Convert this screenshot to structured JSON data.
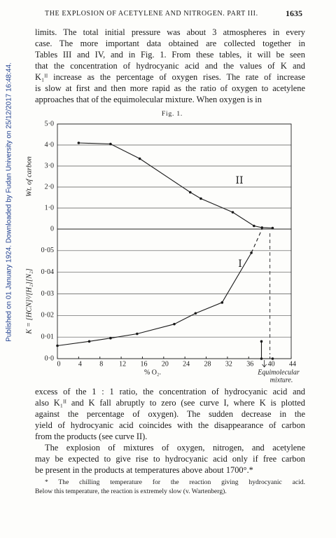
{
  "header": {
    "running_title": "THE EXPLOSION OF ACETYLENE AND NITROGEN.   PART III.",
    "page_number": "1635"
  },
  "side_note": "Published on 01 January 1924. Downloaded by Fudan University on 25/12/2017 16:48:44.",
  "paragraphs": [
    {
      "lines": [
        "limits.  The total initial pressure was about 3 atmospheres in every",
        "case.  The more important data obtained are collected together in",
        "Tables III and IV, and in Fig. 1.  From these tables, it will be seen",
        "that the concentration of hydrocyanic acid and the values of K and",
        "K₁ᴵᴵ increase as the percentage of oxygen rises.  The rate of increase",
        "is slow at first and then more rapid as the ratio of oxygen to acetylene",
        "approaches that of the equimolecular mixture.  When oxygen is in"
      ]
    },
    {
      "lines": [
        "excess of the 1 : 1 ratio, the concentration of hydrocyanic acid and",
        "also K₁ᴵᴵ and K fall abruptly to zero (see curve I, where K is plotted",
        "against the percentage of oxygen).  The sudden decrease in the",
        "yield of hydrocyanic acid coincides with the disappearance of carbon",
        "from the products (see curve II)."
      ]
    },
    {
      "lines": [
        "The explosion of mixtures of oxygen, nitrogen, and acetylene",
        "may be expected to give rise to hydrocyanic acid only if free carbon",
        "be present in the products at temperatures above about 1700°.*"
      ]
    }
  ],
  "footnote": {
    "lines": [
      "* The chilling temperature for the reaction giving hydrocyanic acid.",
      "Below this temperature, the reaction is extremely slow (v. Wartenberg)."
    ]
  },
  "figure_label": "Fig. 1.",
  "chart_data": [
    {
      "type": "line",
      "ylabel": "Wt. of carbon",
      "xlim": [
        0,
        44
      ],
      "ylim": [
        0,
        5
      ],
      "yticks": [
        0,
        {
          "value": 1,
          "label": "1·0"
        },
        {
          "value": 2,
          "label": "2·0"
        },
        {
          "value": 3,
          "label": "3·0"
        },
        {
          "value": 4,
          "label": "4·0"
        },
        {
          "value": 5,
          "label": "5·0"
        }
      ],
      "grid": true,
      "series": [
        {
          "name": "II",
          "color": "#1a1a1a",
          "markers": true,
          "x": [
            4,
            10,
            15.5,
            25,
            27,
            33,
            37,
            38.5,
            40.5
          ],
          "values": [
            4.1,
            4.05,
            3.35,
            1.75,
            1.45,
            0.8,
            0.15,
            0.07,
            0.05
          ]
        }
      ]
    },
    {
      "type": "line",
      "ylabel": "K = [HCN]²/[H₂][N₂]",
      "xlabel": "% O₂.",
      "annotation": [
        "Equimolecular",
        "mixture."
      ],
      "xlim": [
        0,
        44
      ],
      "xticks": [
        0,
        4,
        8,
        12,
        16,
        20,
        24,
        28,
        32,
        36,
        40,
        44
      ],
      "ylim": [
        0,
        0.06
      ],
      "yticks": [
        {
          "value": 0,
          "label": "0·0"
        },
        {
          "value": 0.01,
          "label": "0·01"
        },
        {
          "value": 0.02,
          "label": "0·02"
        },
        {
          "value": 0.03,
          "label": "0·03"
        },
        {
          "value": 0.04,
          "label": "0·04"
        },
        {
          "value": 0.05,
          "label": "0·05"
        }
      ],
      "grid": true,
      "series": [
        {
          "name": "I",
          "color": "#1a1a1a",
          "markers": true,
          "x": [
            0,
            6,
            10,
            15,
            22,
            26,
            31,
            36.5
          ],
          "values": [
            0.006,
            0.008,
            0.0095,
            0.0115,
            0.016,
            0.021,
            0.026,
            0.049
          ]
        },
        {
          "color": "#1a1a1a",
          "dashed": true,
          "x": [
            36.5,
            38.5
          ],
          "values": [
            0.049,
            0.06
          ]
        },
        {
          "color": "#1a1a1a",
          "markers": true,
          "x": [
            38.4,
            38.4,
            40.5
          ],
          "values": [
            0.008,
            0,
            0
          ]
        }
      ]
    }
  ]
}
